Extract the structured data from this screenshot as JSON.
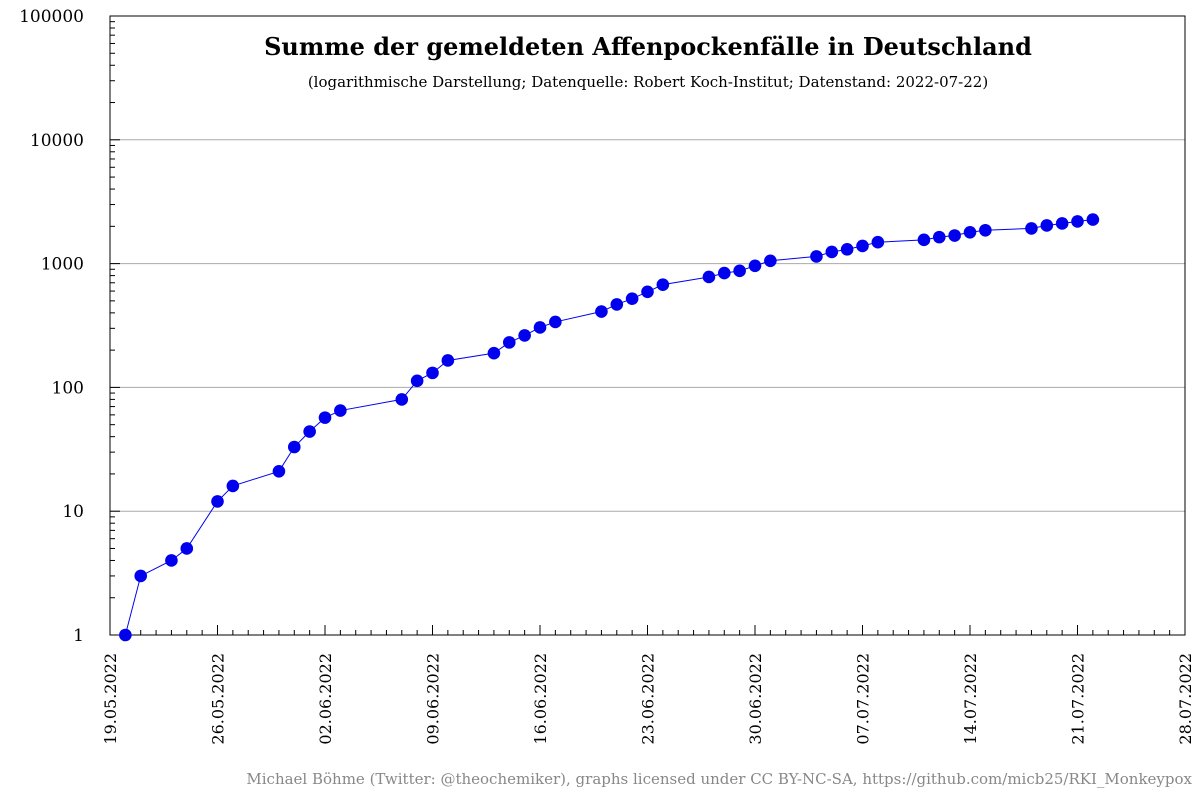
{
  "chart_data": {
    "type": "line",
    "title": "Summe der gemeldeten Affenpockenfälle in Deutschland",
    "subtitle": "(logarithmische Darstellung; Datenquelle: Robert Koch-Institut; Datenstand: 2022-07-22)",
    "credit": "Michael Böhme (Twitter: @theochemiker), graphs licensed under CC BY-NC-SA, https://github.com/micb25/RKI_Monkeypox",
    "xlabel": "",
    "ylabel": "",
    "yscale": "log",
    "ylim": [
      1,
      100000
    ],
    "xlim": [
      "2022-05-19",
      "2022-07-28"
    ],
    "grid": true,
    "y_ticks": [
      {
        "value": 1,
        "label": "1"
      },
      {
        "value": 10,
        "label": "10"
      },
      {
        "value": 100,
        "label": "100"
      },
      {
        "value": 1000,
        "label": "1000"
      },
      {
        "value": 10000,
        "label": "10000"
      },
      {
        "value": 100000,
        "label": "100000"
      }
    ],
    "x_ticks": [
      {
        "date": "2022-05-19",
        "label": "19.05.2022"
      },
      {
        "date": "2022-05-26",
        "label": "26.05.2022"
      },
      {
        "date": "2022-06-02",
        "label": "02.06.2022"
      },
      {
        "date": "2022-06-09",
        "label": "09.06.2022"
      },
      {
        "date": "2022-06-16",
        "label": "16.06.2022"
      },
      {
        "date": "2022-06-23",
        "label": "23.06.2022"
      },
      {
        "date": "2022-06-30",
        "label": "30.06.2022"
      },
      {
        "date": "2022-07-07",
        "label": "07.07.2022"
      },
      {
        "date": "2022-07-14",
        "label": "14.07.2022"
      },
      {
        "date": "2022-07-21",
        "label": "21.07.2022"
      },
      {
        "date": "2022-07-28",
        "label": "28.07.2022"
      }
    ],
    "series": [
      {
        "color": "#0000ee",
        "points": [
          {
            "x": "2022-05-20",
            "y": 1
          },
          {
            "x": "2022-05-21",
            "y": 3
          },
          {
            "x": "2022-05-23",
            "y": 4
          },
          {
            "x": "2022-05-24",
            "y": 5
          },
          {
            "x": "2022-05-26",
            "y": 12
          },
          {
            "x": "2022-05-27",
            "y": 16
          },
          {
            "x": "2022-05-30",
            "y": 21
          },
          {
            "x": "2022-05-31",
            "y": 33
          },
          {
            "x": "2022-06-01",
            "y": 44
          },
          {
            "x": "2022-06-02",
            "y": 57
          },
          {
            "x": "2022-06-03",
            "y": 65
          },
          {
            "x": "2022-06-07",
            "y": 80
          },
          {
            "x": "2022-06-08",
            "y": 113
          },
          {
            "x": "2022-06-09",
            "y": 131
          },
          {
            "x": "2022-06-10",
            "y": 165
          },
          {
            "x": "2022-06-13",
            "y": 189
          },
          {
            "x": "2022-06-14",
            "y": 231
          },
          {
            "x": "2022-06-15",
            "y": 263
          },
          {
            "x": "2022-06-16",
            "y": 305
          },
          {
            "x": "2022-06-17",
            "y": 338
          },
          {
            "x": "2022-06-20",
            "y": 410
          },
          {
            "x": "2022-06-21",
            "y": 468
          },
          {
            "x": "2022-06-22",
            "y": 521
          },
          {
            "x": "2022-06-23",
            "y": 592
          },
          {
            "x": "2022-06-24",
            "y": 676
          },
          {
            "x": "2022-06-27",
            "y": 780
          },
          {
            "x": "2022-06-28",
            "y": 838
          },
          {
            "x": "2022-06-29",
            "y": 874
          },
          {
            "x": "2022-06-30",
            "y": 960
          },
          {
            "x": "2022-07-01",
            "y": 1054
          },
          {
            "x": "2022-07-04",
            "y": 1143
          },
          {
            "x": "2022-07-05",
            "y": 1242
          },
          {
            "x": "2022-07-06",
            "y": 1304
          },
          {
            "x": "2022-07-07",
            "y": 1390
          },
          {
            "x": "2022-07-08",
            "y": 1489
          },
          {
            "x": "2022-07-11",
            "y": 1556
          },
          {
            "x": "2022-07-12",
            "y": 1636
          },
          {
            "x": "2022-07-13",
            "y": 1686
          },
          {
            "x": "2022-07-14",
            "y": 1790
          },
          {
            "x": "2022-07-15",
            "y": 1859
          },
          {
            "x": "2022-07-18",
            "y": 1924
          },
          {
            "x": "2022-07-19",
            "y": 2033
          },
          {
            "x": "2022-07-20",
            "y": 2110
          },
          {
            "x": "2022-07-21",
            "y": 2191
          },
          {
            "x": "2022-07-22",
            "y": 2268
          }
        ]
      }
    ]
  }
}
